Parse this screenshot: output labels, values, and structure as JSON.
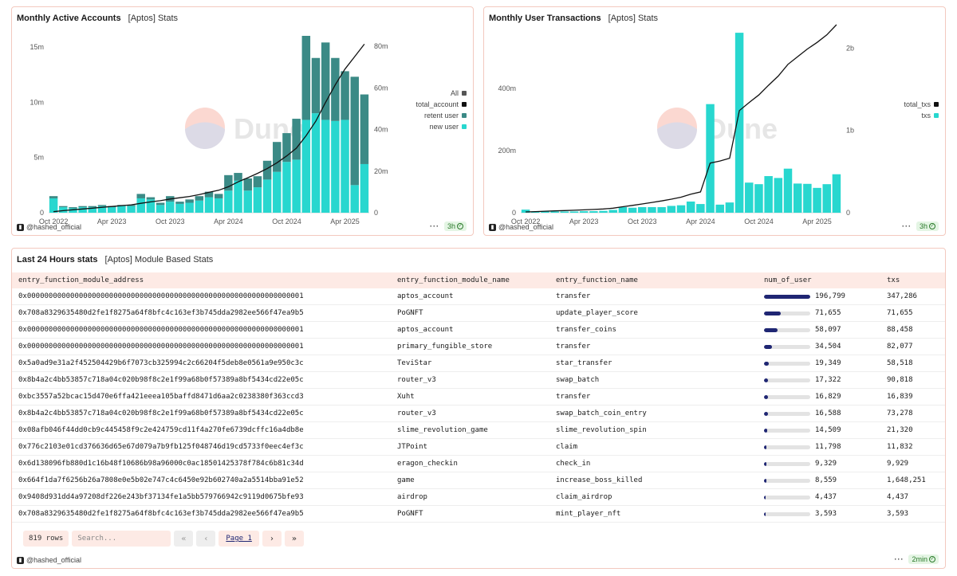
{
  "panels": {
    "accounts": {
      "title": "Monthly Active Accounts",
      "subtitle": "[Aptos] Stats",
      "author": "@hashed_official",
      "refresh": "3h",
      "watermark": "Dune",
      "legend": [
        "All",
        "total_account",
        "retent user",
        "new user"
      ]
    },
    "transactions": {
      "title": "Monthly User Transactions",
      "subtitle": "[Aptos] Stats",
      "author": "@hashed_official",
      "refresh": "3h",
      "watermark": "Dune",
      "legend": [
        "total_txs",
        "txs"
      ]
    },
    "table": {
      "title": "Last 24 Hours stats",
      "subtitle": "[Aptos] Module Based Stats",
      "author": "@hashed_official",
      "refresh": "2min",
      "row_count": "819 rows",
      "search_placeholder": "Search...",
      "page_label": "Page 1"
    }
  },
  "colors": {
    "new_user": "#28d7cf",
    "retent_user": "#3b8a86",
    "total_line": "#111111",
    "bar_fill": "#1f2673",
    "panel_border": "#f3c9bf"
  },
  "chart_data": [
    {
      "type": "bar",
      "title": "Monthly Active Accounts",
      "x": [
        "2022-10",
        "2022-11",
        "2022-12",
        "2023-01",
        "2023-02",
        "2023-03",
        "2023-04",
        "2023-05",
        "2023-06",
        "2023-07",
        "2023-08",
        "2023-09",
        "2023-10",
        "2023-11",
        "2023-12",
        "2024-01",
        "2024-02",
        "2024-03",
        "2024-04",
        "2024-05",
        "2024-06",
        "2024-07",
        "2024-08",
        "2024-09",
        "2024-10",
        "2024-11",
        "2024-12",
        "2025-01",
        "2025-02",
        "2025-03",
        "2025-04",
        "2025-05",
        "2025-06"
      ],
      "x_ticks": [
        "Oct 2022",
        "Apr 2023",
        "Oct 2023",
        "Apr 2024",
        "Oct 2024",
        "Apr 2025"
      ],
      "y_left_ticks": [
        "0",
        "5m",
        "10m",
        "15m"
      ],
      "y_right_ticks": [
        "0",
        "20m",
        "40m",
        "60m",
        "80m"
      ],
      "ylim_left": [
        0,
        16000000
      ],
      "ylim_right": [
        0,
        85000000
      ],
      "series": [
        {
          "name": "new user",
          "axis": "left",
          "stacked": true,
          "values": [
            1300000,
            500000,
            400000,
            500000,
            500000,
            600000,
            500000,
            600000,
            600000,
            1300000,
            1200000,
            700000,
            1000000,
            800000,
            900000,
            1100000,
            1400000,
            1300000,
            2000000,
            2900000,
            2000000,
            2300000,
            3000000,
            3700000,
            4600000,
            4800000,
            8400000,
            9000000,
            8400000,
            8300000,
            8400000,
            2500000,
            4400000
          ]
        },
        {
          "name": "retent user",
          "axis": "left",
          "stacked": true,
          "values": [
            200000,
            100000,
            100000,
            100000,
            100000,
            100000,
            100000,
            100000,
            100000,
            400000,
            200000,
            200000,
            500000,
            200000,
            300000,
            400000,
            500000,
            400000,
            1400000,
            700000,
            1100000,
            1000000,
            1700000,
            2700000,
            2600000,
            3700000,
            7600000,
            5000000,
            7000000,
            5700000,
            4400000,
            9800000,
            6300000
          ]
        },
        {
          "name": "total_account",
          "type": "line",
          "axis": "right",
          "values": [
            500000,
            1000000,
            1400000,
            1800000,
            2200000,
            2600000,
            3000000,
            3400000,
            3800000,
            4500000,
            5200000,
            5800000,
            6600000,
            7200000,
            7800000,
            8700000,
            9800000,
            10800000,
            12500000,
            14800000,
            16800000,
            18900000,
            21200000,
            24000000,
            27300000,
            31000000,
            37000000,
            44000000,
            53000000,
            61500000,
            69000000,
            75000000,
            81000000
          ]
        },
        {
          "name": "All",
          "type": "marker"
        }
      ]
    },
    {
      "type": "bar",
      "title": "Monthly User Transactions",
      "x": [
        "2022-10",
        "2022-11",
        "2022-12",
        "2023-01",
        "2023-02",
        "2023-03",
        "2023-04",
        "2023-05",
        "2023-06",
        "2023-07",
        "2023-08",
        "2023-09",
        "2023-10",
        "2023-11",
        "2023-12",
        "2024-01",
        "2024-02",
        "2024-03",
        "2024-04",
        "2024-05",
        "2024-06",
        "2024-07",
        "2024-08",
        "2024-09",
        "2024-10",
        "2024-11",
        "2024-12",
        "2025-01",
        "2025-02",
        "2025-03",
        "2025-04",
        "2025-05",
        "2025-06"
      ],
      "x_ticks": [
        "Oct 2022",
        "Apr 2023",
        "Oct 2023",
        "Apr 2024",
        "Oct 2024",
        "Apr 2025"
      ],
      "y_left_ticks": [
        "0",
        "200m",
        "400m"
      ],
      "y_right_ticks": [
        "0",
        "1b",
        "2b"
      ],
      "ylim_left": [
        0,
        570000000
      ],
      "ylim_right": [
        0,
        2150000000
      ],
      "series": [
        {
          "name": "txs",
          "axis": "left",
          "values": [
            10000000,
            4000000,
            4000000,
            4000000,
            4000000,
            4000000,
            5000000,
            5000000,
            6000000,
            9000000,
            18000000,
            16000000,
            18000000,
            18000000,
            18000000,
            22000000,
            24000000,
            36000000,
            28000000,
            350000000,
            26000000,
            33000000,
            580000000,
            97000000,
            92000000,
            118000000,
            112000000,
            142000000,
            94000000,
            93000000,
            80000000,
            92000000,
            124000000
          ]
        },
        {
          "name": "total_txs",
          "type": "line",
          "axis": "right",
          "values": [
            10000000,
            14000000,
            18000000,
            22000000,
            26000000,
            30000000,
            35000000,
            40000000,
            46000000,
            55000000,
            73000000,
            89000000,
            107000000,
            125000000,
            143000000,
            165000000,
            189000000,
            225000000,
            253000000,
            603000000,
            629000000,
            662000000,
            1242000000,
            1339000000,
            1431000000,
            1549000000,
            1661000000,
            1803000000,
            1897000000,
            1990000000,
            2070000000,
            2162000000,
            2286000000
          ]
        }
      ]
    }
  ],
  "table": {
    "columns": [
      "entry_function_module_address",
      "entry_function_module_name",
      "entry_function_name",
      "num_of_user",
      "txs"
    ],
    "max_users": 196799,
    "rows": [
      {
        "address": "0x0000000000000000000000000000000000000000000000000000000000000001",
        "module": "aptos_account",
        "fn": "transfer",
        "users": 196799,
        "users_label": "196,799",
        "txs": "347,286"
      },
      {
        "address": "0x708a8329635480d2fe1f8275a64f8bfc4c163ef3b745dda2982ee566f47ea9b5",
        "module": "PoGNFT",
        "fn": "update_player_score",
        "users": 71655,
        "users_label": "71,655",
        "txs": "71,655"
      },
      {
        "address": "0x0000000000000000000000000000000000000000000000000000000000000001",
        "module": "aptos_account",
        "fn": "transfer_coins",
        "users": 58097,
        "users_label": "58,097",
        "txs": "88,458"
      },
      {
        "address": "0x0000000000000000000000000000000000000000000000000000000000000001",
        "module": "primary_fungible_store",
        "fn": "transfer",
        "users": 34504,
        "users_label": "34,504",
        "txs": "82,077"
      },
      {
        "address": "0x5a0ad9e31a2f452504429b6f7073cb325994c2c66204f5deb8e0561a9e950c3c",
        "module": "TeviStar",
        "fn": "star_transfer",
        "users": 19349,
        "users_label": "19,349",
        "txs": "58,518"
      },
      {
        "address": "0x8b4a2c4bb53857c718a04c020b98f8c2e1f99a68b0f57389a8bf5434cd22e05c",
        "module": "router_v3",
        "fn": "swap_batch",
        "users": 17322,
        "users_label": "17,322",
        "txs": "90,818"
      },
      {
        "address": "0xbc3557a52bcac15d470e6ffa421eeea105baffd8471d6aa2c0238380f363ccd3",
        "module": "Xuht",
        "fn": "transfer",
        "users": 16829,
        "users_label": "16,829",
        "txs": "16,839"
      },
      {
        "address": "0x8b4a2c4bb53857c718a04c020b98f8c2e1f99a68b0f57389a8bf5434cd22e05c",
        "module": "router_v3",
        "fn": "swap_batch_coin_entry",
        "users": 16588,
        "users_label": "16,588",
        "txs": "73,278"
      },
      {
        "address": "0x08afb046f44dd0cb9c445458f9c2e424759cd11f4a270fe6739dcffc16a4db8e",
        "module": "slime_revolution_game",
        "fn": "slime_revolution_spin",
        "users": 14509,
        "users_label": "14,509",
        "txs": "21,320"
      },
      {
        "address": "0x776c2103e01cd376636d65e67d079a7b9fb125f048746d19cd5733f0eec4ef3c",
        "module": "JTPoint",
        "fn": "claim",
        "users": 11798,
        "users_label": "11,798",
        "txs": "11,832"
      },
      {
        "address": "0x6d138096fb880d1c16b48f10686b98a96000c0ac18501425378f784c6b81c34d",
        "module": "eragon_checkin",
        "fn": "check_in",
        "users": 9329,
        "users_label": "9,329",
        "txs": "9,929"
      },
      {
        "address": "0x664f1da7f6256b26a7808e0e5b02e747c4c6450e92b602740a2a5514bba91e52",
        "module": "game",
        "fn": "increase_boss_killed",
        "users": 8559,
        "users_label": "8,559",
        "txs": "1,648,251"
      },
      {
        "address": "0x9408d931dd4a97208df226e243bf37134fe1a5bb579766942c9119d0675bfe93",
        "module": "airdrop",
        "fn": "claim_airdrop",
        "users": 4437,
        "users_label": "4,437",
        "txs": "4,437"
      },
      {
        "address": "0x708a8329635480d2fe1f8275a64f8bfc4c163ef3b745dda2982ee566f47ea9b5",
        "module": "PoGNFT",
        "fn": "mint_player_nft",
        "users": 3593,
        "users_label": "3,593",
        "txs": "3,593"
      }
    ]
  }
}
